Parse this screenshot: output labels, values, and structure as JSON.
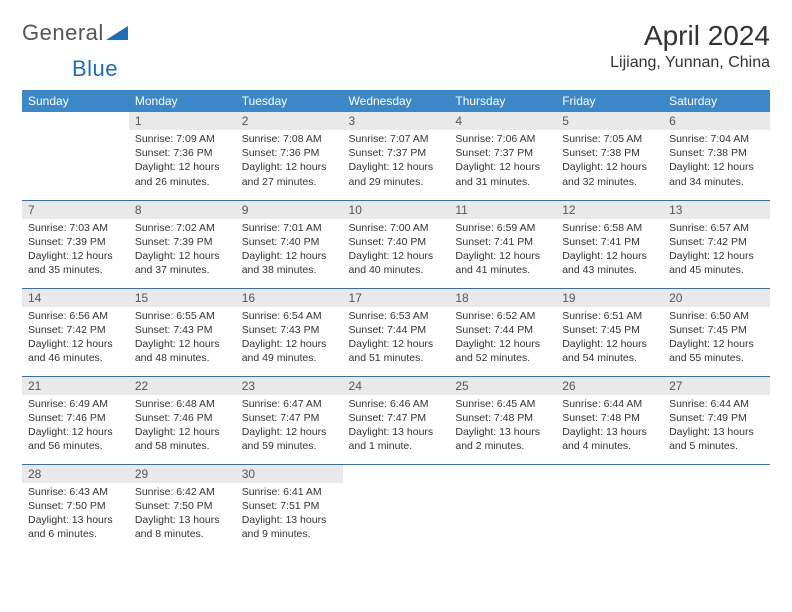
{
  "logo": {
    "text1": "General",
    "text2": "Blue"
  },
  "title": "April 2024",
  "location": "Lijiang, Yunnan, China",
  "colors": {
    "header_bg": "#3b87c8",
    "header_fg": "#ffffff",
    "daynum_bg": "#e9e9e9",
    "border": "#3b6fa0",
    "logo_accent": "#1f6db3"
  },
  "weekdays": [
    "Sunday",
    "Monday",
    "Tuesday",
    "Wednesday",
    "Thursday",
    "Friday",
    "Saturday"
  ],
  "weeks": [
    [
      null,
      {
        "n": "1",
        "sr": "7:09 AM",
        "ss": "7:36 PM",
        "dl": "12 hours and 26 minutes."
      },
      {
        "n": "2",
        "sr": "7:08 AM",
        "ss": "7:36 PM",
        "dl": "12 hours and 27 minutes."
      },
      {
        "n": "3",
        "sr": "7:07 AM",
        "ss": "7:37 PM",
        "dl": "12 hours and 29 minutes."
      },
      {
        "n": "4",
        "sr": "7:06 AM",
        "ss": "7:37 PM",
        "dl": "12 hours and 31 minutes."
      },
      {
        "n": "5",
        "sr": "7:05 AM",
        "ss": "7:38 PM",
        "dl": "12 hours and 32 minutes."
      },
      {
        "n": "6",
        "sr": "7:04 AM",
        "ss": "7:38 PM",
        "dl": "12 hours and 34 minutes."
      }
    ],
    [
      {
        "n": "7",
        "sr": "7:03 AM",
        "ss": "7:39 PM",
        "dl": "12 hours and 35 minutes."
      },
      {
        "n": "8",
        "sr": "7:02 AM",
        "ss": "7:39 PM",
        "dl": "12 hours and 37 minutes."
      },
      {
        "n": "9",
        "sr": "7:01 AM",
        "ss": "7:40 PM",
        "dl": "12 hours and 38 minutes."
      },
      {
        "n": "10",
        "sr": "7:00 AM",
        "ss": "7:40 PM",
        "dl": "12 hours and 40 minutes."
      },
      {
        "n": "11",
        "sr": "6:59 AM",
        "ss": "7:41 PM",
        "dl": "12 hours and 41 minutes."
      },
      {
        "n": "12",
        "sr": "6:58 AM",
        "ss": "7:41 PM",
        "dl": "12 hours and 43 minutes."
      },
      {
        "n": "13",
        "sr": "6:57 AM",
        "ss": "7:42 PM",
        "dl": "12 hours and 45 minutes."
      }
    ],
    [
      {
        "n": "14",
        "sr": "6:56 AM",
        "ss": "7:42 PM",
        "dl": "12 hours and 46 minutes."
      },
      {
        "n": "15",
        "sr": "6:55 AM",
        "ss": "7:43 PM",
        "dl": "12 hours and 48 minutes."
      },
      {
        "n": "16",
        "sr": "6:54 AM",
        "ss": "7:43 PM",
        "dl": "12 hours and 49 minutes."
      },
      {
        "n": "17",
        "sr": "6:53 AM",
        "ss": "7:44 PM",
        "dl": "12 hours and 51 minutes."
      },
      {
        "n": "18",
        "sr": "6:52 AM",
        "ss": "7:44 PM",
        "dl": "12 hours and 52 minutes."
      },
      {
        "n": "19",
        "sr": "6:51 AM",
        "ss": "7:45 PM",
        "dl": "12 hours and 54 minutes."
      },
      {
        "n": "20",
        "sr": "6:50 AM",
        "ss": "7:45 PM",
        "dl": "12 hours and 55 minutes."
      }
    ],
    [
      {
        "n": "21",
        "sr": "6:49 AM",
        "ss": "7:46 PM",
        "dl": "12 hours and 56 minutes."
      },
      {
        "n": "22",
        "sr": "6:48 AM",
        "ss": "7:46 PM",
        "dl": "12 hours and 58 minutes."
      },
      {
        "n": "23",
        "sr": "6:47 AM",
        "ss": "7:47 PM",
        "dl": "12 hours and 59 minutes."
      },
      {
        "n": "24",
        "sr": "6:46 AM",
        "ss": "7:47 PM",
        "dl": "13 hours and 1 minute."
      },
      {
        "n": "25",
        "sr": "6:45 AM",
        "ss": "7:48 PM",
        "dl": "13 hours and 2 minutes."
      },
      {
        "n": "26",
        "sr": "6:44 AM",
        "ss": "7:48 PM",
        "dl": "13 hours and 4 minutes."
      },
      {
        "n": "27",
        "sr": "6:44 AM",
        "ss": "7:49 PM",
        "dl": "13 hours and 5 minutes."
      }
    ],
    [
      {
        "n": "28",
        "sr": "6:43 AM",
        "ss": "7:50 PM",
        "dl": "13 hours and 6 minutes."
      },
      {
        "n": "29",
        "sr": "6:42 AM",
        "ss": "7:50 PM",
        "dl": "13 hours and 8 minutes."
      },
      {
        "n": "30",
        "sr": "6:41 AM",
        "ss": "7:51 PM",
        "dl": "13 hours and 9 minutes."
      },
      null,
      null,
      null,
      null
    ]
  ],
  "labels": {
    "sunrise": "Sunrise:",
    "sunset": "Sunset:",
    "daylight": "Daylight:"
  }
}
